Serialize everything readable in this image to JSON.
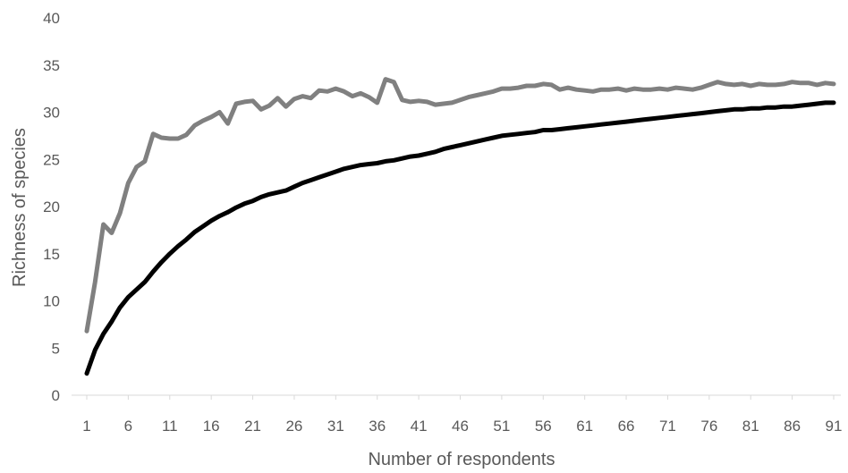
{
  "chart_data": {
    "type": "line",
    "title": "",
    "xlabel": "Number of respondents",
    "ylabel": "Richness of species",
    "xlim": [
      1,
      91
    ],
    "ylim": [
      0,
      40
    ],
    "y_ticks": [
      0,
      5,
      10,
      15,
      20,
      25,
      30,
      35,
      40
    ],
    "x_ticks": [
      1,
      6,
      11,
      16,
      21,
      26,
      31,
      36,
      41,
      46,
      51,
      56,
      61,
      66,
      71,
      76,
      81,
      86,
      91
    ],
    "grid": false,
    "legend": "none",
    "x": [
      1,
      2,
      3,
      4,
      5,
      6,
      7,
      8,
      9,
      10,
      11,
      12,
      13,
      14,
      15,
      16,
      17,
      18,
      19,
      20,
      21,
      22,
      23,
      24,
      25,
      26,
      27,
      28,
      29,
      30,
      31,
      32,
      33,
      34,
      35,
      36,
      37,
      38,
      39,
      40,
      41,
      42,
      43,
      44,
      45,
      46,
      47,
      48,
      49,
      50,
      51,
      52,
      53,
      54,
      55,
      56,
      57,
      58,
      59,
      60,
      61,
      62,
      63,
      64,
      65,
      66,
      67,
      68,
      69,
      70,
      71,
      72,
      73,
      74,
      75,
      76,
      77,
      78,
      79,
      80,
      81,
      82,
      83,
      84,
      85,
      86,
      87,
      88,
      89,
      90,
      91
    ],
    "series": [
      {
        "color": "#808080",
        "values": [
          6.8,
          12.0,
          18.1,
          17.2,
          19.3,
          22.5,
          24.2,
          24.8,
          27.7,
          27.3,
          27.2,
          27.2,
          27.6,
          28.6,
          29.1,
          29.5,
          30.0,
          28.8,
          30.9,
          31.1,
          31.2,
          30.3,
          30.7,
          31.5,
          30.6,
          31.4,
          31.7,
          31.5,
          32.3,
          32.2,
          32.5,
          32.2,
          31.7,
          32.0,
          31.6,
          31.0,
          33.5,
          33.2,
          31.3,
          31.1,
          31.2,
          31.1,
          30.8,
          30.9,
          31.0,
          31.3,
          31.6,
          31.8,
          32.0,
          32.2,
          32.5,
          32.5,
          32.6,
          32.8,
          32.8,
          33.0,
          32.9,
          32.4,
          32.6,
          32.4,
          32.3,
          32.2,
          32.4,
          32.4,
          32.5,
          32.3,
          32.5,
          32.4,
          32.4,
          32.5,
          32.4,
          32.6,
          32.5,
          32.4,
          32.6,
          32.9,
          33.2,
          33.0,
          32.9,
          33.0,
          32.8,
          33.0,
          32.9,
          32.9,
          33.0,
          33.2,
          33.1,
          33.1,
          32.9,
          33.1,
          33.0
        ]
      },
      {
        "color": "#000000",
        "values": [
          2.3,
          4.8,
          6.5,
          7.8,
          9.3,
          10.4,
          11.2,
          12.0,
          13.1,
          14.1,
          15.0,
          15.8,
          16.5,
          17.3,
          17.9,
          18.5,
          19.0,
          19.4,
          19.9,
          20.3,
          20.6,
          21.0,
          21.3,
          21.5,
          21.7,
          22.1,
          22.5,
          22.8,
          23.1,
          23.4,
          23.7,
          24.0,
          24.2,
          24.4,
          24.5,
          24.6,
          24.8,
          24.9,
          25.1,
          25.3,
          25.4,
          25.6,
          25.8,
          26.1,
          26.3,
          26.5,
          26.7,
          26.9,
          27.1,
          27.3,
          27.5,
          27.6,
          27.7,
          27.8,
          27.9,
          28.1,
          28.1,
          28.2,
          28.3,
          28.4,
          28.5,
          28.6,
          28.7,
          28.8,
          28.9,
          29.0,
          29.1,
          29.2,
          29.3,
          29.4,
          29.5,
          29.6,
          29.7,
          29.8,
          29.9,
          30.0,
          30.1,
          30.2,
          30.3,
          30.3,
          30.4,
          30.4,
          30.5,
          30.5,
          30.6,
          30.6,
          30.7,
          30.8,
          30.9,
          31.0,
          31.0
        ]
      }
    ]
  }
}
